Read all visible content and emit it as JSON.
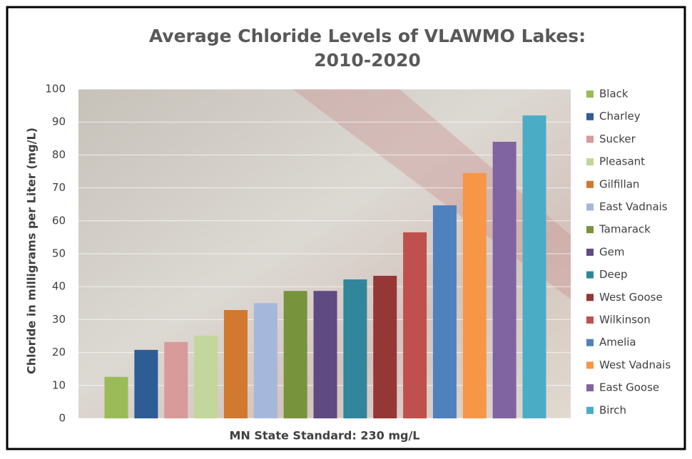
{
  "chart_data": {
    "type": "bar",
    "title": [
      "Average Chloride Levels of VLAWMO Lakes:",
      "2010-2020"
    ],
    "x_label": "MN State Standard: 230 mg/L",
    "y_label": "Chloride in milligrams per Liter (mg/L)",
    "ylim": [
      0,
      100
    ],
    "yticks": [
      0,
      10,
      20,
      30,
      40,
      50,
      60,
      70,
      80,
      90,
      100
    ],
    "grid": true,
    "legend": "right",
    "series": [
      {
        "name": "Black",
        "color": "#9bbb59",
        "values": [
          12.6
        ]
      },
      {
        "name": "Charley",
        "color": "#2e5c94",
        "values": [
          20.8
        ]
      },
      {
        "name": "Sucker",
        "color": "#d99a9a",
        "values": [
          23.2
        ]
      },
      {
        "name": "Pleasant",
        "color": "#c3d69b",
        "values": [
          25.1
        ]
      },
      {
        "name": "Gilfillan",
        "color": "#d0792f",
        "values": [
          32.9
        ]
      },
      {
        "name": "East Vadnais",
        "color": "#a5b8dc",
        "values": [
          35
        ]
      },
      {
        "name": "Tamarack",
        "color": "#77933c",
        "values": [
          38.7
        ]
      },
      {
        "name": "Gem",
        "color": "#5f4a82",
        "values": [
          38.7
        ]
      },
      {
        "name": "Deep",
        "color": "#31869b",
        "values": [
          42.2
        ]
      },
      {
        "name": "West Goose",
        "color": "#953735",
        "values": [
          43.3
        ]
      },
      {
        "name": "Wilkinson",
        "color": "#c0504d",
        "values": [
          56.5
        ]
      },
      {
        "name": "Amelia",
        "color": "#4f81bd",
        "values": [
          64.7
        ]
      },
      {
        "name": "West Vadnais",
        "color": "#f79646",
        "values": [
          74.5
        ]
      },
      {
        "name": "East Goose",
        "color": "#8064a2",
        "values": [
          84
        ]
      },
      {
        "name": "Birch",
        "color": "#4bacc6",
        "values": [
          92
        ]
      }
    ]
  }
}
